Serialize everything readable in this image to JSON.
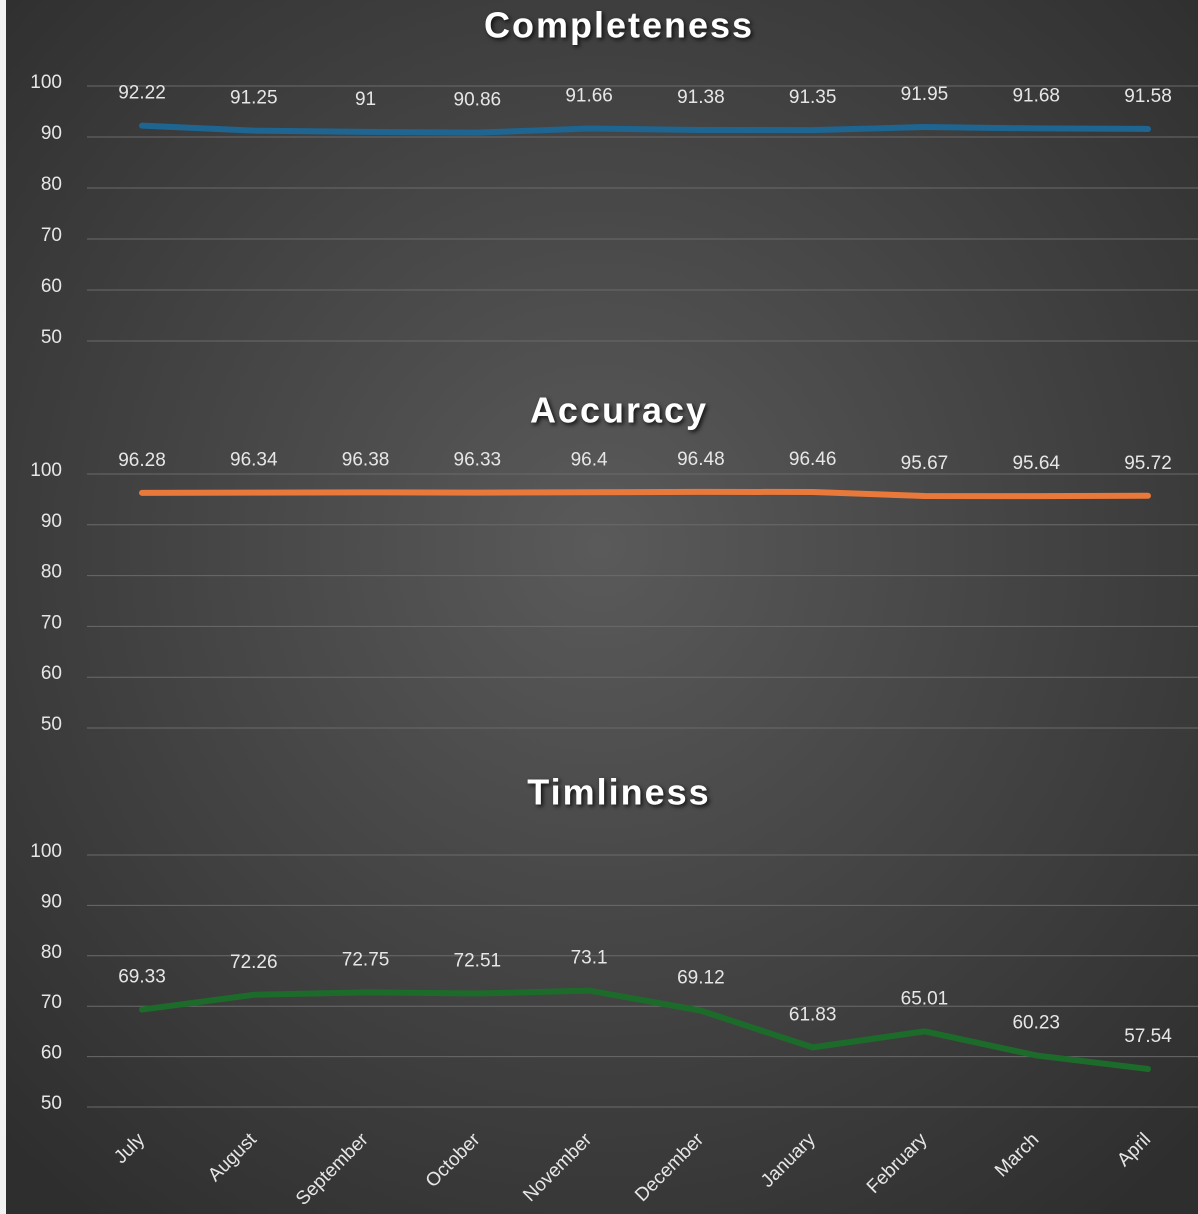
{
  "chart_data": [
    {
      "type": "line",
      "title": "Completeness",
      "categories": [
        null,
        null,
        null,
        null,
        null,
        null,
        null,
        null,
        null,
        null
      ],
      "values": [
        92.22,
        91.25,
        91,
        90.86,
        91.66,
        91.38,
        91.35,
        91.95,
        91.68,
        91.58
      ],
      "color": "#1f6591",
      "ylim": [
        50,
        100
      ],
      "yticks": [
        50,
        60,
        70,
        80,
        90,
        100
      ],
      "grid": true
    },
    {
      "type": "line",
      "title": "Accuracy",
      "categories": [
        null,
        null,
        null,
        null,
        null,
        null,
        null,
        null,
        null,
        null
      ],
      "values": [
        96.28,
        96.34,
        96.38,
        96.33,
        96.4,
        96.48,
        96.46,
        95.67,
        95.64,
        95.72
      ],
      "color": "#e8793a",
      "ylim": [
        50,
        100
      ],
      "yticks": [
        50,
        60,
        70,
        80,
        90,
        100
      ],
      "grid": true
    },
    {
      "type": "line",
      "title": "Timliness",
      "categories": [
        "July",
        "August",
        "September",
        "October",
        "November",
        "December",
        "January",
        "February",
        "March",
        "April"
      ],
      "values": [
        69.33,
        72.26,
        72.75,
        72.51,
        73.1,
        69.12,
        61.83,
        65.01,
        60.23,
        57.54
      ],
      "color": "#1d6b2a",
      "ylim": [
        50,
        100
      ],
      "yticks": [
        50,
        60,
        70,
        80,
        90,
        100
      ],
      "grid": true
    }
  ]
}
